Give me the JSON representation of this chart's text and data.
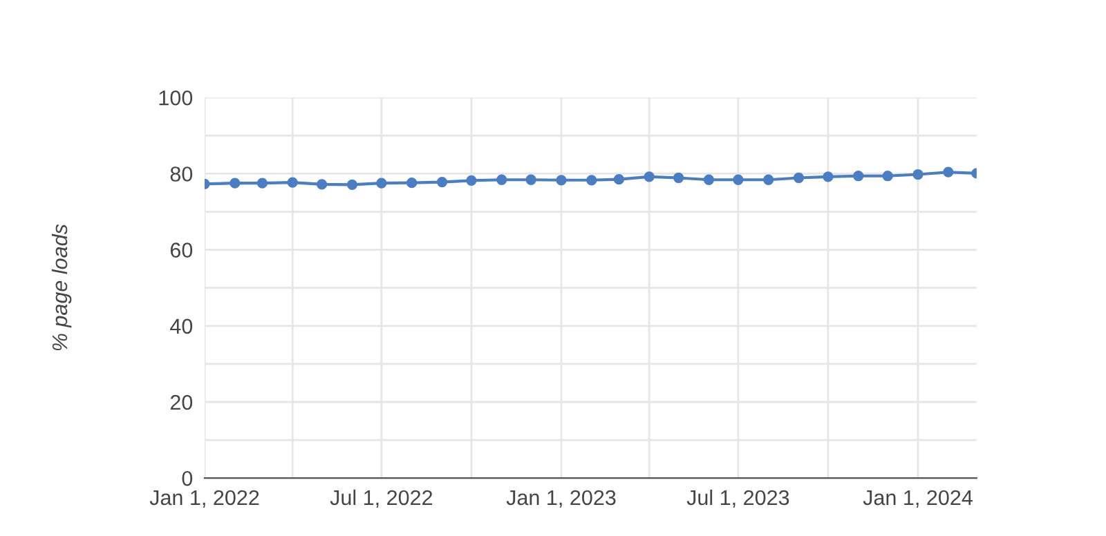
{
  "chart_data": {
    "type": "line",
    "ylabel": "% page loads",
    "x": [
      "2022-01-01",
      "2022-02-01",
      "2022-03-01",
      "2022-04-01",
      "2022-05-01",
      "2022-06-01",
      "2022-07-01",
      "2022-08-01",
      "2022-09-01",
      "2022-10-01",
      "2022-11-01",
      "2022-12-01",
      "2023-01-01",
      "2023-02-01",
      "2023-03-01",
      "2023-04-01",
      "2023-05-01",
      "2023-06-01",
      "2023-07-01",
      "2023-08-01",
      "2023-09-01",
      "2023-10-01",
      "2023-11-01",
      "2023-12-01",
      "2024-01-01",
      "2024-02-01",
      "2024-03-01"
    ],
    "series": [
      {
        "color": "#4a7ec4",
        "values": [
          77.3,
          77.5,
          77.5,
          77.7,
          77.2,
          77.1,
          77.5,
          77.6,
          77.8,
          78.2,
          78.4,
          78.4,
          78.3,
          78.3,
          78.5,
          79.2,
          78.9,
          78.4,
          78.4,
          78.4,
          78.9,
          79.2,
          79.4,
          79.4,
          79.8,
          80.4,
          80.1
        ]
      }
    ],
    "xlim": [
      "2022-01-01",
      "2024-03-01"
    ],
    "xticks": [
      {
        "value": "2022-01-01",
        "label": "Jan 1, 2022"
      },
      {
        "value": "2022-04-01",
        "label": null
      },
      {
        "value": "2022-07-01",
        "label": "Jul 1, 2022"
      },
      {
        "value": "2022-10-01",
        "label": null
      },
      {
        "value": "2023-01-01",
        "label": "Jan 1, 2023"
      },
      {
        "value": "2023-04-01",
        "label": null
      },
      {
        "value": "2023-07-01",
        "label": "Jul 1, 2023"
      },
      {
        "value": "2023-10-01",
        "label": null
      },
      {
        "value": "2024-01-01",
        "label": "Jan 1, 2024"
      }
    ],
    "ylim": [
      0,
      100
    ],
    "yticks": [
      0,
      {
        "value": 10,
        "label": null
      },
      20,
      {
        "value": 30,
        "label": null
      },
      40,
      {
        "value": 50,
        "label": null
      },
      60,
      {
        "value": 70,
        "label": null
      },
      80,
      {
        "value": 90,
        "label": null
      },
      100
    ],
    "grid": true,
    "marker": "circle",
    "line_style": "solid"
  }
}
